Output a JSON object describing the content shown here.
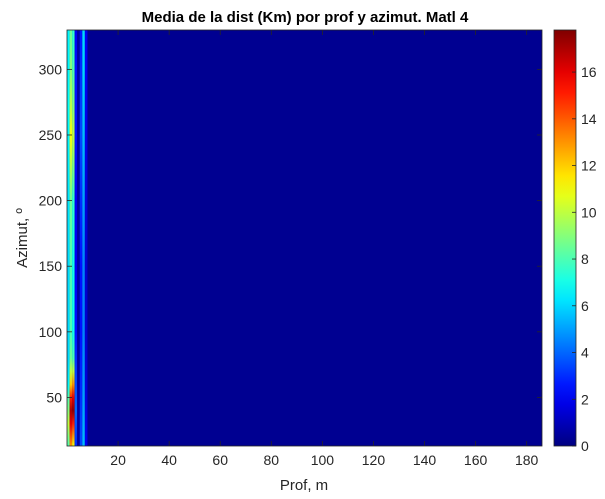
{
  "chart_data": {
    "type": "heatmap",
    "title": "Media de la dist (Km) por prof y azimut. Matl 4",
    "xlabel": "Prof, m",
    "ylabel": "Azimut, º",
    "xlim": [
      0,
      186
    ],
    "ylim": [
      13,
      330
    ],
    "xticks": [
      "20",
      "40",
      "60",
      "80",
      "100",
      "120",
      "140",
      "160",
      "180"
    ],
    "yticks": [
      "50",
      "100",
      "150",
      "200",
      "250",
      "300"
    ],
    "colormap": "jet",
    "clim": [
      0,
      17.8
    ],
    "colorbar_ticks": [
      "0",
      "2",
      "4",
      "6",
      "8",
      "10",
      "12",
      "14",
      "16"
    ],
    "background_value": 0.3,
    "columns": [
      {
        "x0": 0,
        "x1": 1,
        "azimuth": [
          13,
          30,
          40,
          50,
          60,
          70,
          80,
          100,
          150,
          200,
          250,
          270,
          300,
          330
        ],
        "values": [
          8,
          10,
          9,
          8,
          6.5,
          6.2,
          6,
          6,
          6,
          6.2,
          6.5,
          6.8,
          6.5,
          6.5
        ]
      },
      {
        "x0": 1,
        "x1": 2,
        "azimuth": [
          13,
          30,
          40,
          50,
          60,
          70,
          80,
          100,
          150,
          200,
          250,
          270,
          300,
          330
        ],
        "values": [
          13,
          16,
          17,
          15,
          12,
          10,
          8.5,
          8,
          8,
          8.5,
          11,
          10,
          9,
          8.5
        ]
      },
      {
        "x0": 2,
        "x1": 3,
        "azimuth": [
          13,
          30,
          40,
          50,
          60,
          70,
          80,
          100,
          150,
          200,
          250,
          270,
          300,
          330
        ],
        "values": [
          11,
          15,
          17.5,
          16,
          13,
          10,
          8,
          7,
          7,
          7.5,
          10,
          9,
          8,
          7.5
        ]
      },
      {
        "x0": 3,
        "x1": 4,
        "azimuth": [
          13,
          40,
          60,
          100,
          150,
          200,
          250,
          300,
          330
        ],
        "values": [
          3,
          4,
          3.5,
          2.5,
          2,
          2,
          2.5,
          2.5,
          2
        ]
      },
      {
        "x0": 4,
        "x1": 5,
        "azimuth": [
          13,
          330
        ],
        "values": [
          0.6,
          0.6
        ]
      },
      {
        "x0": 5,
        "x1": 6,
        "azimuth": [
          13,
          50,
          100,
          150,
          200,
          250,
          300,
          330
        ],
        "values": [
          3.5,
          3,
          2.5,
          2.5,
          3,
          3.5,
          3,
          2.5
        ]
      },
      {
        "x0": 6,
        "x1": 7,
        "azimuth": [
          13,
          50,
          100,
          150,
          200,
          250,
          300,
          330
        ],
        "values": [
          5.5,
          5,
          4.5,
          4.5,
          5,
          5.5,
          6,
          6
        ]
      },
      {
        "x0": 7,
        "x1": 8,
        "azimuth": [
          13,
          50,
          100,
          150,
          200,
          250,
          300,
          330
        ],
        "values": [
          2,
          1.6,
          1.4,
          1.4,
          1.6,
          1.8,
          2,
          2
        ]
      }
    ]
  }
}
